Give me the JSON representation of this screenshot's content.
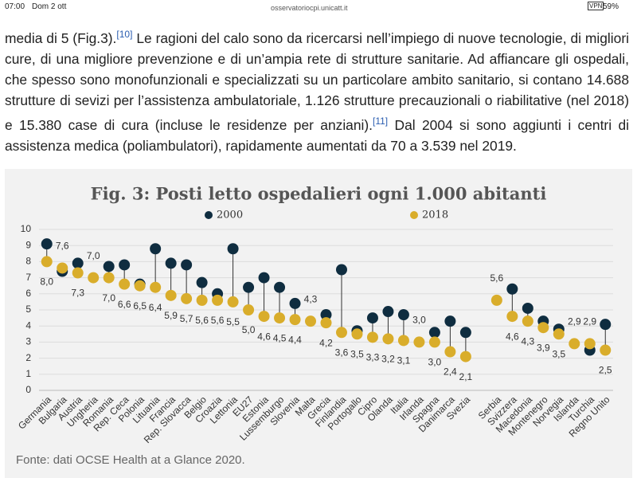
{
  "status_bar": {
    "time": "07:00",
    "date": "Dom 2 ott",
    "url": "osservatoriocpi.unicatt.it",
    "vpn": "VPN",
    "battery": "59%"
  },
  "paragraph": {
    "parts": [
      "media di 5 (Fig.3).",
      "[10]",
      " Le ragioni del calo sono da ricercarsi nell’impiego di nuove tecnologie, di migliori cure, di una migliore prevenzione e di un’ampia rete di strutture sanitarie. Ad affiancare gli ospedali, che spesso sono monofunzionali e specializzati su un particolare ambito sanitario, si contano 14.688 strutture di sevizi per l’assistenza ambulatoriale, 1.126 strutture precauzionali o riabilitative (nel 2018) e 15.380 case di cura (incluse le residenze per anziani).",
      "[11]",
      " Dal 2004 si sono aggiunti i centri di assistenza medica (poliambulatori), rapidamente aumentati da 70 a 3.539 nel 2019."
    ]
  },
  "chart_data": {
    "type": "dot",
    "title": "Fig. 3: Posti letto ospedalieri ogni 1.000 abitanti",
    "source": "Fonte: dati OCSE Health at a Glance 2020.",
    "categories": [
      "Germania",
      "Bulgaria",
      "Austria",
      "Ungheria",
      "Romania",
      "Rep. Ceca",
      "Polonia",
      "Lituania",
      "Francia",
      "Rep. Slovacca",
      "Belgio",
      "Croazia",
      "Lettonia",
      "EU27",
      "Estonia",
      "Lussemburgo",
      "Slovenia",
      "Malta",
      "Grecia",
      "Finlandia",
      "Portogallo",
      "Cipro",
      "Olanda",
      "Italia",
      "Irlanda",
      "Spagna",
      "Danimarca",
      "Svezia",
      null,
      "Serbia",
      "Svizzera",
      "Macedonia",
      "Montenegro",
      "Norvegia",
      "Islanda",
      "Turchia",
      "Regno Unito"
    ],
    "series": [
      {
        "name": "2000",
        "color": "#0f2d40",
        "values": [
          9.1,
          7.4,
          7.9,
          null,
          7.7,
          7.8,
          6.6,
          8.8,
          7.9,
          7.8,
          6.7,
          6.0,
          8.8,
          6.4,
          7.0,
          6.4,
          5.4,
          null,
          4.7,
          7.5,
          3.7,
          4.5,
          4.9,
          4.7,
          null,
          3.6,
          4.3,
          3.6,
          null,
          null,
          6.3,
          5.1,
          4.3,
          3.8,
          null,
          2.5,
          4.1
        ]
      },
      {
        "name": "2018",
        "color": "#d9ad2b",
        "values": [
          8.0,
          7.6,
          7.3,
          7.0,
          7.0,
          6.6,
          6.5,
          6.4,
          5.9,
          5.7,
          5.6,
          5.6,
          5.5,
          5.0,
          4.6,
          4.5,
          4.4,
          4.3,
          4.2,
          3.6,
          3.5,
          3.3,
          3.2,
          3.1,
          3.0,
          3.0,
          2.4,
          2.1,
          null,
          5.6,
          4.6,
          4.3,
          3.9,
          3.5,
          2.9,
          2.9,
          2.5
        ],
        "value_labels": [
          "8,0",
          "7,6",
          "7,3",
          "7,0",
          "7,0",
          "6,6",
          "6,5",
          "6,4",
          "5,9",
          "5,7",
          "5,6",
          "5,6",
          "5,5",
          "5,0",
          "4,6",
          "4,5",
          "4,4",
          "4,3",
          "4,2",
          "3,6",
          "3,5",
          "3,3",
          "3,2",
          "3,1",
          "3,0",
          "3,0",
          "2,4",
          "2,1",
          null,
          "5,6",
          "4,6",
          "4,3",
          "3,9",
          "3,5",
          "2,9",
          "2,9",
          "2,5"
        ]
      }
    ],
    "ylim": [
      0,
      10
    ],
    "yticks": [
      0,
      1,
      2,
      3,
      4,
      5,
      6,
      7,
      8,
      9,
      10
    ],
    "grid": true
  }
}
